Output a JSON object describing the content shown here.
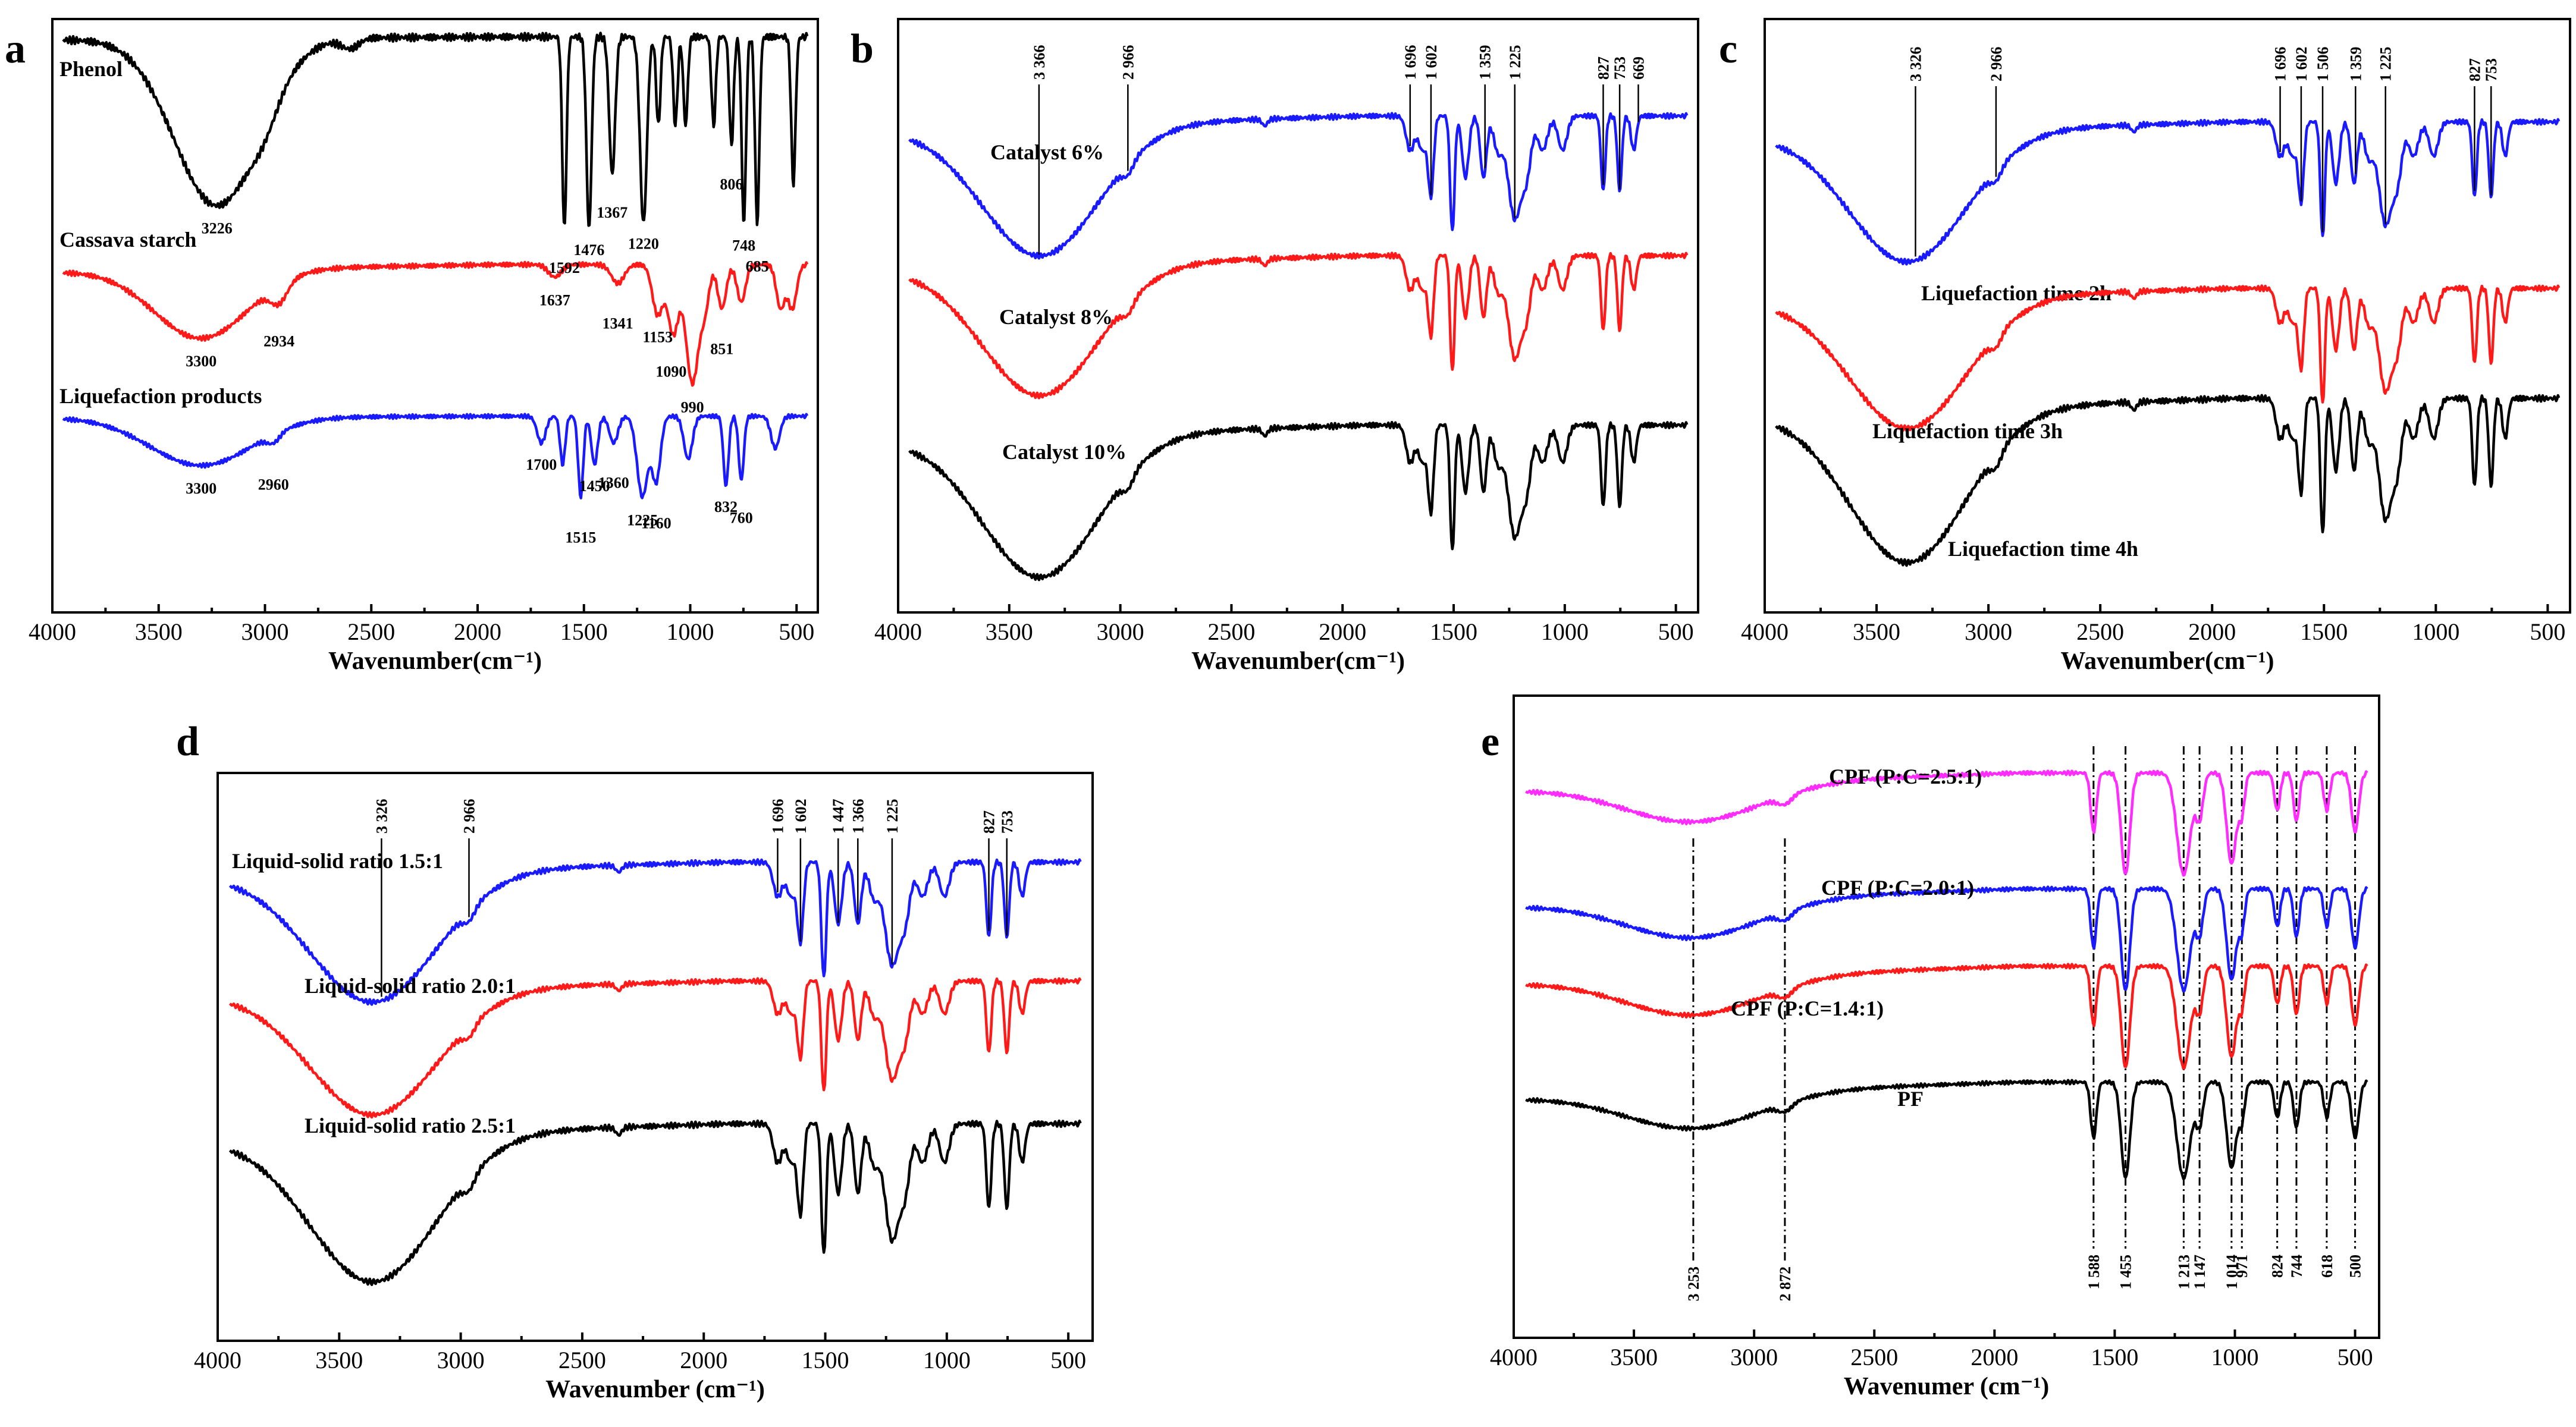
{
  "colors": {
    "black": "#000000",
    "red": "#ff1a1a",
    "blue": "#1a1aff",
    "magenta": "#ff2bff"
  },
  "chart_data": [
    {
      "panel": "a",
      "type": "line",
      "xlabel": "Wavenumber(cm⁻¹)",
      "xlim": [
        4000,
        400
      ],
      "xticks": [
        4000,
        3500,
        3000,
        2500,
        2000,
        1500,
        1000,
        500
      ],
      "series": [
        {
          "name": "Phenol",
          "color": "#000000",
          "shape": "phenol",
          "peaks": [
            {
              "label": "3226",
              "x": 3226
            },
            {
              "label": "1592",
              "x": 1592
            },
            {
              "label": "1476",
              "x": 1476
            },
            {
              "label": "1367",
              "x": 1367
            },
            {
              "label": "1220",
              "x": 1220
            },
            {
              "label": "806",
              "x": 806
            },
            {
              "label": "748",
              "x": 748
            },
            {
              "label": "685",
              "x": 685
            }
          ]
        },
        {
          "name": "Cassava starch",
          "color": "#ff1a1a",
          "shape": "starch",
          "peaks": [
            {
              "label": "3300",
              "x": 3300
            },
            {
              "label": "2934",
              "x": 2934
            },
            {
              "label": "1637",
              "x": 1637
            },
            {
              "label": "1341",
              "x": 1341
            },
            {
              "label": "1153",
              "x": 1153
            },
            {
              "label": "1090",
              "x": 1090
            },
            {
              "label": "990",
              "x": 990
            },
            {
              "label": "851",
              "x": 851
            }
          ]
        },
        {
          "name": "Liquefaction products",
          "color": "#1a1aff",
          "shape": "lp",
          "peaks": [
            {
              "label": "3300",
              "x": 3300
            },
            {
              "label": "2960",
              "x": 2960
            },
            {
              "label": "1700",
              "x": 1700
            },
            {
              "label": "1515",
              "x": 1515
            },
            {
              "label": "1450",
              "x": 1450
            },
            {
              "label": "1360",
              "x": 1360
            },
            {
              "label": "1225",
              "x": 1225
            },
            {
              "label": "1160",
              "x": 1160
            },
            {
              "label": "832",
              "x": 832
            },
            {
              "label": "760",
              "x": 760
            }
          ]
        }
      ]
    },
    {
      "panel": "b",
      "type": "line",
      "xlabel": "Wavenumber(cm⁻¹)",
      "xlim": [
        4000,
        400
      ],
      "xticks": [
        4000,
        3500,
        3000,
        2500,
        2000,
        1500,
        1000,
        500
      ],
      "series": [
        {
          "name": "Catalyst  6%",
          "color": "#1a1aff",
          "shape": "pf"
        },
        {
          "name": "Catalyst  8%",
          "color": "#ff1a1a",
          "shape": "pf"
        },
        {
          "name": "Catalyst  10%",
          "color": "#000000",
          "shape": "pf"
        }
      ],
      "annotations": [
        {
          "label": "3 366",
          "x": 3366
        },
        {
          "label": "2 966",
          "x": 2966
        },
        {
          "label": "1 696",
          "x": 1696
        },
        {
          "label": "1 602",
          "x": 1602
        },
        {
          "label": "1 359",
          "x": 1359
        },
        {
          "label": "1 225",
          "x": 1225
        },
        {
          "label": "827",
          "x": 827
        },
        {
          "label": "753",
          "x": 753
        },
        {
          "label": "669",
          "x": 669
        }
      ]
    },
    {
      "panel": "c",
      "type": "line",
      "xlabel": "Wavenumber(cm⁻¹)",
      "xlim": [
        4000,
        400
      ],
      "xticks": [
        4000,
        3500,
        3000,
        2500,
        2000,
        1500,
        1000,
        500
      ],
      "series": [
        {
          "name": "Liquefaction time 2h",
          "color": "#1a1aff",
          "shape": "pf"
        },
        {
          "name": "Liquefaction time 3h",
          "color": "#ff1a1a",
          "shape": "pf"
        },
        {
          "name": "Liquefaction time 4h",
          "color": "#000000",
          "shape": "pf"
        }
      ],
      "annotations": [
        {
          "label": "3 326",
          "x": 3326
        },
        {
          "label": "2 966",
          "x": 2966
        },
        {
          "label": "1 696",
          "x": 1696
        },
        {
          "label": "1 602",
          "x": 1602
        },
        {
          "label": "1 506",
          "x": 1506
        },
        {
          "label": "1 359",
          "x": 1359
        },
        {
          "label": "1 225",
          "x": 1225
        },
        {
          "label": "827",
          "x": 827
        },
        {
          "label": "753",
          "x": 753
        }
      ]
    },
    {
      "panel": "d",
      "type": "line",
      "xlabel": "Wavenumber (cm⁻¹)",
      "xlim": [
        4000,
        400
      ],
      "xticks": [
        4000,
        3500,
        3000,
        2500,
        2000,
        1500,
        1000,
        500
      ],
      "series": [
        {
          "name": "Liquid-solid ratio 1.5:1",
          "color": "#1a1aff",
          "shape": "pf"
        },
        {
          "name": "Liquid-solid ratio 2.0:1",
          "color": "#ff1a1a",
          "shape": "pf"
        },
        {
          "name": "Liquid-solid ratio 2.5:1",
          "color": "#000000",
          "shape": "pf"
        }
      ],
      "annotations": [
        {
          "label": "3 326",
          "x": 3326
        },
        {
          "label": "2 966",
          "x": 2966
        },
        {
          "label": "1 696",
          "x": 1696
        },
        {
          "label": "1 602",
          "x": 1602
        },
        {
          "label": "1 447",
          "x": 1447
        },
        {
          "label": "1 366",
          "x": 1366
        },
        {
          "label": "1 225",
          "x": 1225
        },
        {
          "label": "827",
          "x": 827
        },
        {
          "label": "753",
          "x": 753
        }
      ]
    },
    {
      "panel": "e",
      "type": "line",
      "xlabel": "Wavenumer (cm⁻¹)",
      "xlim": [
        4000,
        400
      ],
      "xticks": [
        4000,
        3500,
        3000,
        2500,
        2000,
        1500,
        1000,
        500
      ],
      "series": [
        {
          "name": "CPF (P:C=2.5:1)",
          "color": "#ff2bff",
          "shape": "cpf"
        },
        {
          "name": "CPF (P:C=2.0:1)",
          "color": "#1a1aff",
          "shape": "cpf"
        },
        {
          "name": "CPF (P:C=1.4:1)",
          "color": "#ff1a1a",
          "shape": "cpf"
        },
        {
          "name": "PF",
          "color": "#000000",
          "shape": "cpf"
        }
      ],
      "annotations": [
        {
          "label": "3 253",
          "x": 3253
        },
        {
          "label": "2 872",
          "x": 2872
        },
        {
          "label": "1 588",
          "x": 1588
        },
        {
          "label": "1 455",
          "x": 1455
        },
        {
          "label": "1 213",
          "x": 1213
        },
        {
          "label": "1 147",
          "x": 1147
        },
        {
          "label": "1 014",
          "x": 1014
        },
        {
          "label": "971",
          "x": 971
        },
        {
          "label": "824",
          "x": 824
        },
        {
          "label": "744",
          "x": 744
        },
        {
          "label": "618",
          "x": 618
        },
        {
          "label": "500",
          "x": 500
        }
      ]
    }
  ]
}
